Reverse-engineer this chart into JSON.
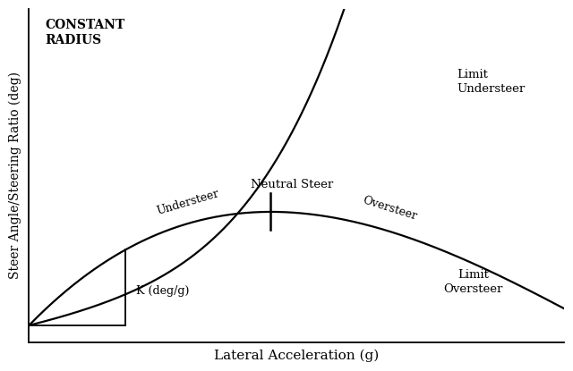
{
  "xlabel": "Lateral Acceleration (g)",
  "ylabel": "Steer Angle/Steering Ratio (deg)",
  "constant_radius_text": "CONSTANT\nRADIUS",
  "neutral_steer_label": "Neutral Steer",
  "understeer_label": "Understeer",
  "oversteer_label": "Oversteer",
  "limit_understeer_label": "Limit\nUndersteer",
  "limit_oversteer_label": "Limit\nOversteer",
  "k_label": "K (deg/g)",
  "background_color": "#ffffff",
  "line_color": "#000000",
  "text_color": "#000000",
  "xlim": [
    0,
    1.0
  ],
  "ylim": [
    0,
    1.0
  ],
  "figsize": [
    6.4,
    4.15
  ],
  "dpi": 100
}
